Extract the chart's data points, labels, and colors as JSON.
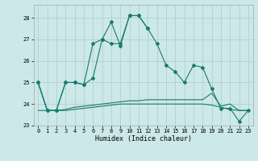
{
  "xlabel": "Humidex (Indice chaleur)",
  "x": [
    0,
    1,
    2,
    3,
    4,
    5,
    6,
    7,
    8,
    9,
    10,
    11,
    12,
    13,
    14,
    15,
    16,
    17,
    18,
    19,
    20,
    21,
    22,
    23
  ],
  "line1": [
    25.0,
    23.7,
    23.7,
    25.0,
    25.0,
    24.9,
    26.8,
    27.0,
    27.8,
    26.7,
    28.1,
    28.1,
    27.5,
    26.8,
    25.8,
    25.5,
    25.0,
    25.8,
    25.7,
    24.7,
    23.8,
    23.8,
    23.2,
    23.7
  ],
  "line2_x": [
    0,
    1,
    2,
    3,
    4,
    5,
    6,
    7,
    8,
    9,
    10,
    11,
    12
  ],
  "line2_y": [
    25.0,
    23.7,
    23.7,
    25.0,
    25.0,
    24.9,
    25.2,
    27.0,
    26.8,
    26.8,
    28.1,
    28.1,
    27.5
  ],
  "line3": [
    23.7,
    23.7,
    23.7,
    23.7,
    23.75,
    23.8,
    23.85,
    23.9,
    23.95,
    24.0,
    24.0,
    24.0,
    24.0,
    24.0,
    24.0,
    24.0,
    24.0,
    24.0,
    24.0,
    23.95,
    23.85,
    23.75,
    23.7,
    23.7
  ],
  "line4": [
    25.0,
    23.7,
    23.7,
    23.75,
    23.85,
    23.9,
    23.95,
    24.0,
    24.05,
    24.1,
    24.15,
    24.15,
    24.2,
    24.2,
    24.2,
    24.2,
    24.2,
    24.2,
    24.2,
    24.5,
    23.9,
    24.0,
    23.7,
    23.7
  ],
  "ylim": [
    23,
    28.6
  ],
  "yticks": [
    23,
    24,
    25,
    26,
    27,
    28
  ],
  "xticks": [
    0,
    1,
    2,
    3,
    4,
    5,
    6,
    7,
    8,
    9,
    10,
    11,
    12,
    13,
    14,
    15,
    16,
    17,
    18,
    19,
    20,
    21,
    22,
    23
  ],
  "line_color": "#1a7a6e",
  "bg_color": "#cce8e8",
  "grid_color": "#aacece"
}
